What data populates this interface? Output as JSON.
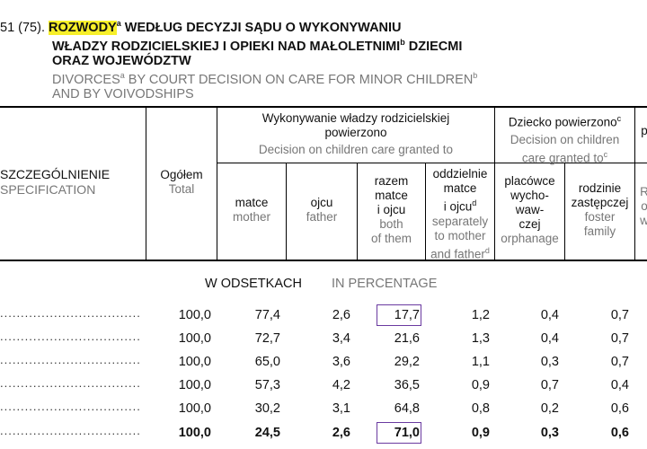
{
  "title": {
    "number": "51 (75).",
    "pl_highlight": "ROZWODY",
    "pl_sup_a": "a",
    "pl_line1_rest": " WEDŁUG DECYZJI SĄDU O WYKONYWANIU",
    "pl_line2": "WŁADZY RODZICIELSKIEJ I OPIEKI NAD MAŁOLETNIMI",
    "pl_sup_b": "b",
    "pl_line2_end": " DZIECMI",
    "pl_line3": "ORAZ WOJEWÓDZTW",
    "en_line1_a": "DIVORCES",
    "en_sup_a": "a",
    "en_line1_b": " BY COURT DECISION ON CARE FOR MINOR CHILDREN",
    "en_sup_b": "b",
    "en_line2": "AND BY VOIVODSHIPS"
  },
  "header": {
    "specification_pl": "SZCZEGÓLNIENIE",
    "specification_en": "SPECIFICATION",
    "total_pl": "Ogółem",
    "total_en": "Total",
    "group1_pl_1": "Wykonywanie władzy rodzicielskiej",
    "group1_pl_2": "powierzono",
    "group1_en": "Decision on children care granted to",
    "group2_pl": "Dziecko powierzono",
    "group2_sup": "c",
    "group2_en_1": "Decision on children",
    "group2_en_2": "care granted to",
    "group2_en_sup": "c",
    "mother_pl": "matce",
    "mother_en": "mother",
    "father_pl": "ojcu",
    "father_en": "father",
    "both_pl_1": "razem",
    "both_pl_2": "matce",
    "both_pl_3": "i ojcu",
    "both_en_1": "both",
    "both_en_2": "of them",
    "sep_pl_1": "oddzielnie",
    "sep_pl_2": "matce",
    "sep_pl_3": "i ojcu",
    "sep_sup": "d",
    "sep_en_1": "separately",
    "sep_en_2": "to mother",
    "sep_en_3": "and father",
    "sep_en_sup": "d",
    "orph_pl_1": "placówce",
    "orph_pl_2": "wycho-",
    "orph_pl_3": "waw-",
    "orph_pl_4": "czej",
    "orph_en": "orphanage",
    "foster_pl_1": "rodzinie",
    "foster_pl_2": "zastępczej",
    "foster_en_1": "foster",
    "foster_en_2": "family",
    "cut_top": "p",
    "cut_mid_1": "R",
    "cut_mid_2": "o",
    "cut_mid_3": "w"
  },
  "section": {
    "pl": "W ODSETKACH",
    "en": "IN PERCENTAGE"
  },
  "rows": [
    {
      "total": "100,0",
      "mother": "77,4",
      "father": "2,6",
      "both": "17,7",
      "sep": "1,2",
      "orph": "0,4",
      "foster": "0,7"
    },
    {
      "total": "100,0",
      "mother": "72,7",
      "father": "3,4",
      "both": "21,6",
      "sep": "1,3",
      "orph": "0,4",
      "foster": "0,7"
    },
    {
      "total": "100,0",
      "mother": "65,0",
      "father": "3,6",
      "both": "29,2",
      "sep": "1,1",
      "orph": "0,3",
      "foster": "0,7"
    },
    {
      "total": "100,0",
      "mother": "57,3",
      "father": "4,2",
      "both": "36,5",
      "sep": "0,9",
      "orph": "0,7",
      "foster": "0,4"
    },
    {
      "total": "100,0",
      "mother": "30,2",
      "father": "3,1",
      "both": "64,8",
      "sep": "0,8",
      "orph": "0,2",
      "foster": "0,6"
    },
    {
      "total": "100,0",
      "mother": "24,5",
      "father": "2,6",
      "both": "71,0",
      "sep": "0,9",
      "orph": "0,3",
      "foster": "0,6"
    }
  ],
  "dots": "..............................................",
  "colors": {
    "highlight": "#f7ef2a",
    "box": "#6a3aa0",
    "english": "#777777"
  }
}
